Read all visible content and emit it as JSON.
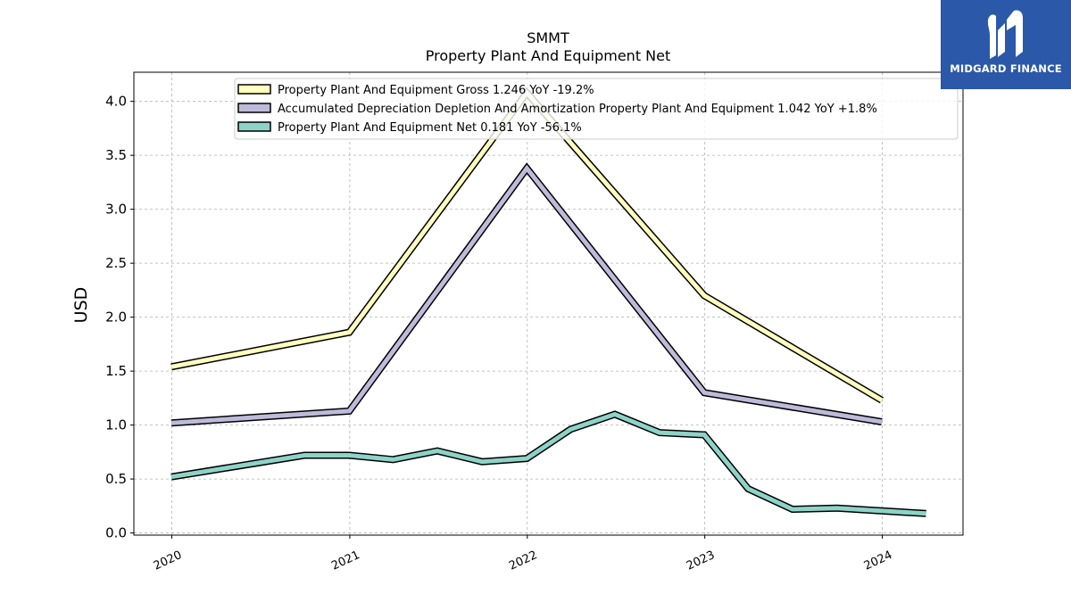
{
  "logo": {
    "text": "MIDGARD FINANCE",
    "bg_color": "#2b58a8",
    "icon": "midgard-logo-icon"
  },
  "chart_data": {
    "type": "line",
    "title": "SMMT",
    "subtitle": "Property Plant And Equipment Net",
    "ylabel": "USD",
    "xlabel": "",
    "xlim": [
      "2019-10-15",
      "2024-06-15"
    ],
    "ylim": [
      -0.02,
      4.27
    ],
    "x_ticks": [
      "2020",
      "2021",
      "2022",
      "2023",
      "2024"
    ],
    "y_ticks": [
      "0.0",
      "0.5",
      "1.0",
      "1.5",
      "2.0",
      "2.5",
      "3.0",
      "3.5",
      "4.0"
    ],
    "grid": true,
    "legend_position": "top",
    "series": [
      {
        "name": "Property Plant And Equipment Gross  1.246 YoY -19.2%",
        "color": "#ffffbf",
        "points": [
          {
            "x": "2019-12-31",
            "y": 1.54
          },
          {
            "x": "2020-12-31",
            "y": 1.86
          },
          {
            "x": "2021-12-31",
            "y": 4.08
          },
          {
            "x": "2022-12-31",
            "y": 2.2
          },
          {
            "x": "2023-12-31",
            "y": 1.23
          }
        ]
      },
      {
        "name": "Accumulated Depreciation Depletion And Amortization Property Plant And Equipment  1.042 YoY +1.8%",
        "color": "#bebada",
        "points": [
          {
            "x": "2019-12-31",
            "y": 1.02
          },
          {
            "x": "2020-12-31",
            "y": 1.13
          },
          {
            "x": "2021-12-31",
            "y": 3.38
          },
          {
            "x": "2022-12-31",
            "y": 1.3
          },
          {
            "x": "2023-12-31",
            "y": 1.03
          }
        ]
      },
      {
        "name": "Property Plant And Equipment Net  0.181 YoY -56.1%",
        "color": "#8dd3c7",
        "points": [
          {
            "x": "2019-12-31",
            "y": 0.52
          },
          {
            "x": "2020-09-30",
            "y": 0.72
          },
          {
            "x": "2020-12-31",
            "y": 0.72
          },
          {
            "x": "2021-03-31",
            "y": 0.68
          },
          {
            "x": "2021-06-30",
            "y": 0.76
          },
          {
            "x": "2021-09-30",
            "y": 0.66
          },
          {
            "x": "2021-12-31",
            "y": 0.69
          },
          {
            "x": "2022-03-31",
            "y": 0.96
          },
          {
            "x": "2022-06-30",
            "y": 1.1
          },
          {
            "x": "2022-09-30",
            "y": 0.93
          },
          {
            "x": "2022-12-31",
            "y": 0.91
          },
          {
            "x": "2023-03-31",
            "y": 0.41
          },
          {
            "x": "2023-06-30",
            "y": 0.22
          },
          {
            "x": "2023-09-30",
            "y": 0.23
          },
          {
            "x": "2024-03-31",
            "y": 0.18
          }
        ]
      }
    ]
  }
}
